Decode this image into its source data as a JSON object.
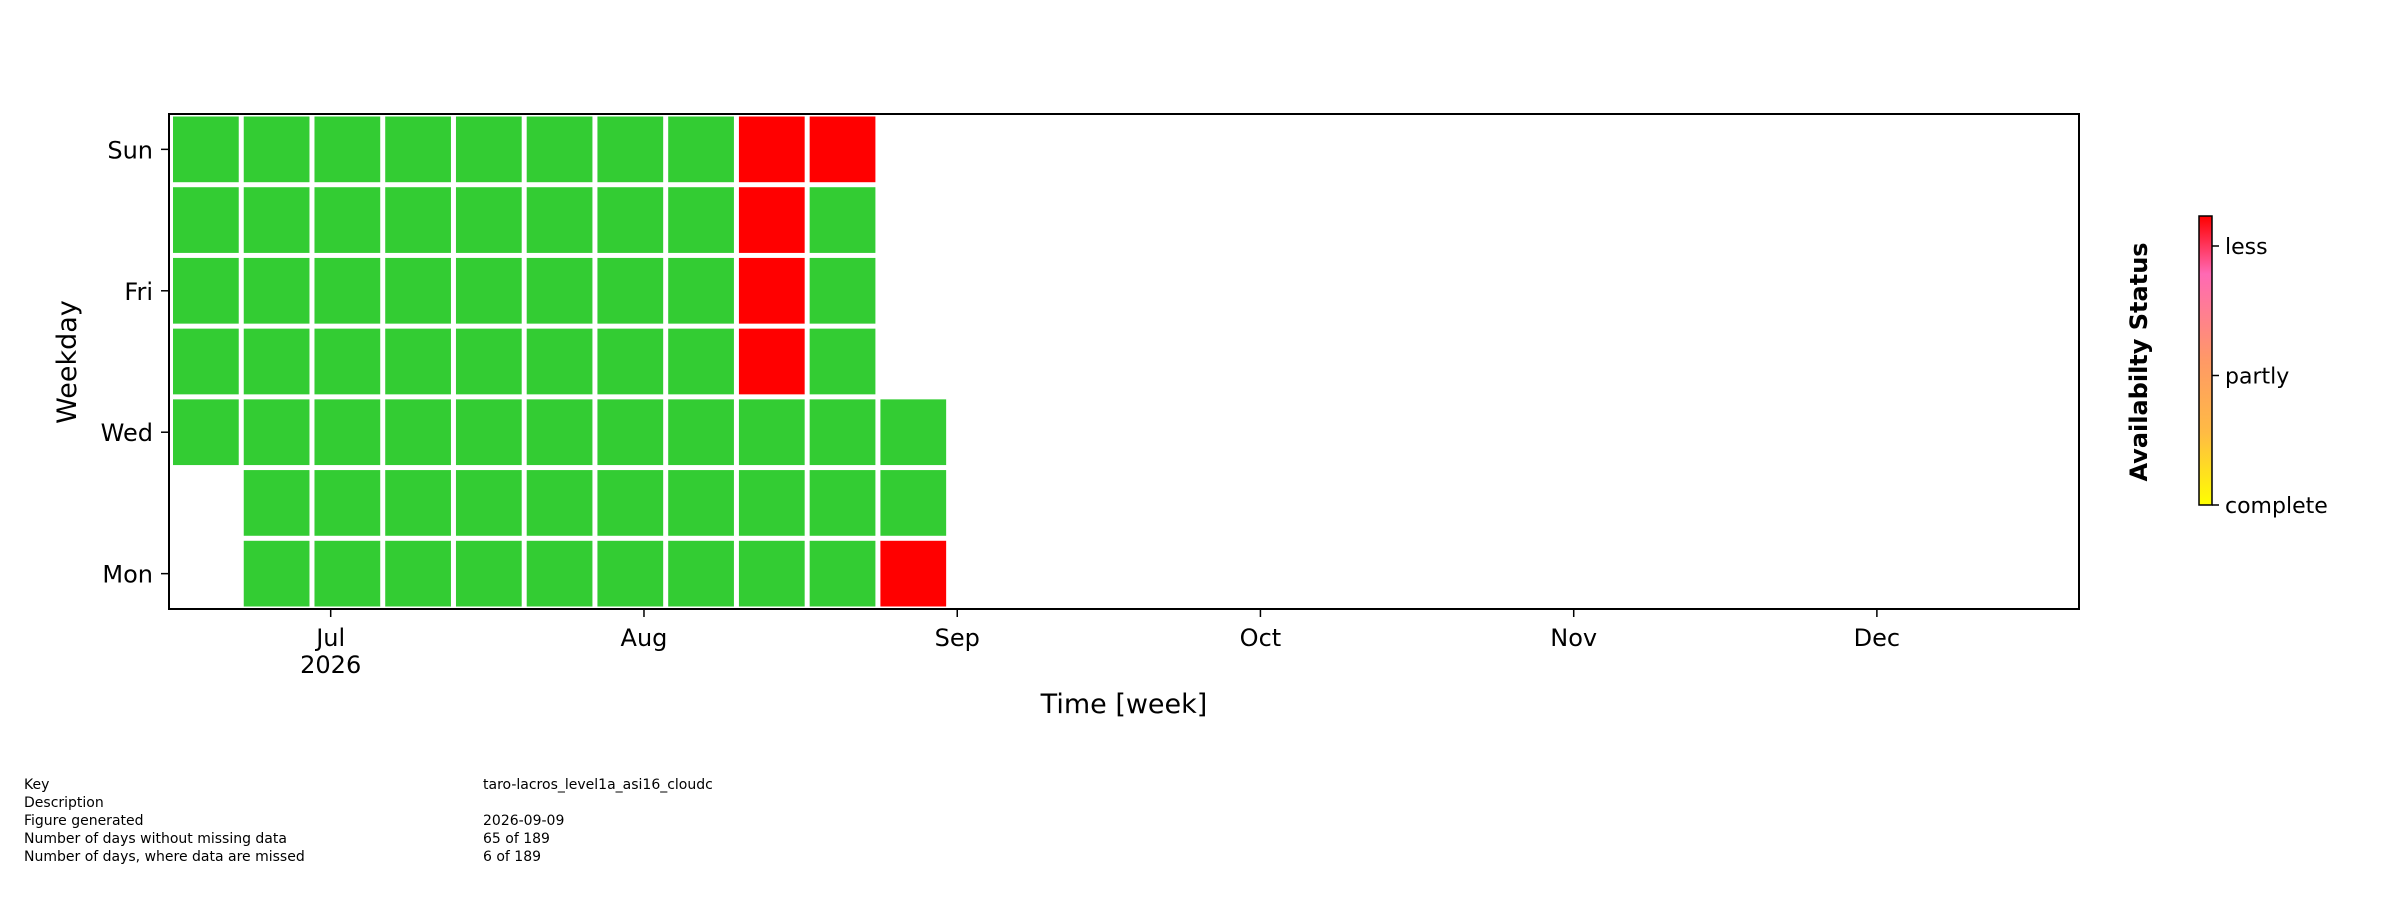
{
  "chart_data": {
    "type": "heatmap",
    "title": "",
    "xlabel": "Time [week]",
    "ylabel": "Weekday",
    "y_tick_labels": [
      "Sun",
      "Fri",
      "Wed",
      "Mon"
    ],
    "x_ticks": [
      {
        "date": "2026-07-01",
        "label": "Jul",
        "sublabel": "2026"
      },
      {
        "date": "2026-08-01",
        "label": "Aug",
        "sublabel": ""
      },
      {
        "date": "2026-09-01",
        "label": "Sep",
        "sublabel": ""
      },
      {
        "date": "2026-10-01",
        "label": "Oct",
        "sublabel": ""
      },
      {
        "date": "2026-11-01",
        "label": "Nov",
        "sublabel": ""
      },
      {
        "date": "2026-12-01",
        "label": "Dec",
        "sublabel": ""
      }
    ],
    "x_range": [
      "2026-06-15",
      "2026-12-21"
    ],
    "weekday_rows": [
      "Mon",
      "Tue",
      "Wed",
      "Thu",
      "Fri",
      "Sat",
      "Sun"
    ],
    "week_starts": [
      "2026-06-15",
      "2026-06-22",
      "2026-06-29",
      "2026-07-06",
      "2026-07-13",
      "2026-07-20",
      "2026-07-27",
      "2026-08-03",
      "2026-08-10",
      "2026-08-17",
      "2026-08-24"
    ],
    "status": [
      [
        null,
        "complete",
        "complete",
        "complete",
        "complete",
        "complete",
        "complete",
        "complete",
        "complete",
        "complete",
        "less"
      ],
      [
        null,
        "complete",
        "complete",
        "complete",
        "complete",
        "complete",
        "complete",
        "complete",
        "complete",
        "complete",
        "complete"
      ],
      [
        "complete",
        "complete",
        "complete",
        "complete",
        "complete",
        "complete",
        "complete",
        "complete",
        "complete",
        "complete",
        "complete"
      ],
      [
        "complete",
        "complete",
        "complete",
        "complete",
        "complete",
        "complete",
        "complete",
        "complete",
        "less",
        "complete",
        null
      ],
      [
        "complete",
        "complete",
        "complete",
        "complete",
        "complete",
        "complete",
        "complete",
        "complete",
        "less",
        "complete",
        null
      ],
      [
        "complete",
        "complete",
        "complete",
        "complete",
        "complete",
        "complete",
        "complete",
        "complete",
        "less",
        "complete",
        null
      ],
      [
        "complete",
        "complete",
        "complete",
        "complete",
        "complete",
        "complete",
        "complete",
        "complete",
        "less",
        "less",
        null
      ]
    ],
    "status_colors": {
      "complete": "#33cc33",
      "less": "#ff0000"
    },
    "colorbar": {
      "label": "Availabilty Status",
      "ticks": [
        "less",
        "partly",
        "complete"
      ],
      "gradient": [
        "#ff0000",
        "#ff69b4",
        "#ff9966",
        "#ffbb44",
        "#ffff00"
      ]
    }
  },
  "info": [
    {
      "label": "Key",
      "value": "taro-lacros_level1a_asi16_cloudc"
    },
    {
      "label": "Description",
      "value": ""
    },
    {
      "label": "Figure generated",
      "value": "2026-09-09"
    },
    {
      "label": "Number of days without missing data",
      "value": "65 of 189"
    },
    {
      "label": "Number of days, where data are missed",
      "value": "6 of 189"
    }
  ]
}
